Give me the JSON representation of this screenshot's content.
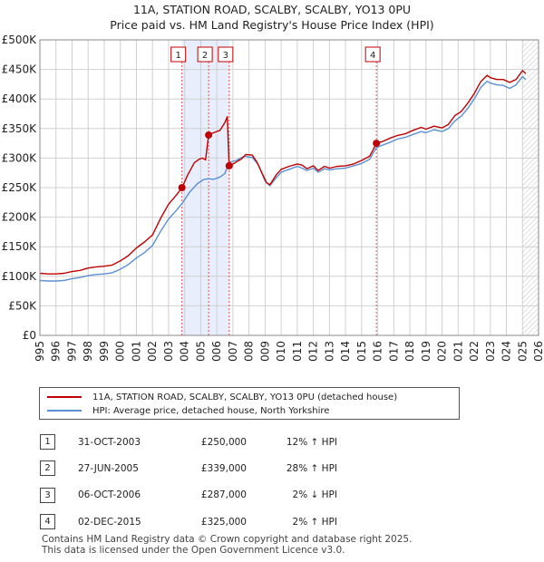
{
  "title_line1": "11A, STATION ROAD, SCALBY, SCALBY, YO13 0PU",
  "title_line2": "Price paid vs. HM Land Registry's House Price Index (HPI)",
  "colors": {
    "property": "#c00000",
    "hpi": "#5b8fd4",
    "shade": "#e8eefb",
    "grid": "#d0d0d0",
    "marker_line": "#e05050"
  },
  "chart_data": {
    "type": "line",
    "title": "11A, STATION ROAD, SCALBY, SCALBY, YO13 0PU",
    "subtitle": "Price paid vs. HM Land Registry's House Price Index (HPI)",
    "xlabel": "",
    "ylabel": "",
    "xlim": [
      1995,
      2026
    ],
    "ylim": [
      0,
      500000
    ],
    "y_ticks": [
      0,
      50000,
      100000,
      150000,
      200000,
      250000,
      300000,
      350000,
      400000,
      450000,
      500000
    ],
    "y_tick_labels": [
      "£0",
      "£50K",
      "£100K",
      "£150K",
      "£200K",
      "£250K",
      "£300K",
      "£350K",
      "£400K",
      "£450K",
      "£500K"
    ],
    "x_ticks": [
      1995,
      1996,
      1997,
      1998,
      1999,
      2000,
      2001,
      2002,
      2003,
      2004,
      2005,
      2006,
      2007,
      2008,
      2009,
      2010,
      2011,
      2012,
      2013,
      2014,
      2015,
      2016,
      2017,
      2018,
      2019,
      2020,
      2021,
      2022,
      2023,
      2024,
      2025,
      2026
    ],
    "grid": true,
    "shaded_ranges": [
      [
        2003.83,
        2006.77
      ]
    ],
    "hatched_from": 2025.0,
    "series": [
      {
        "name": "11A, STATION ROAD, SCALBY, SCALBY, YO13 0PU (detached house)",
        "color": "#c00000",
        "points": [
          [
            1995.0,
            105000
          ],
          [
            1995.5,
            104000
          ],
          [
            1996.0,
            104000
          ],
          [
            1996.5,
            105000
          ],
          [
            1997.0,
            108000
          ],
          [
            1997.5,
            110000
          ],
          [
            1998.0,
            114000
          ],
          [
            1998.5,
            116000
          ],
          [
            1999.0,
            117000
          ],
          [
            1999.5,
            119000
          ],
          [
            2000.0,
            126000
          ],
          [
            2000.5,
            135000
          ],
          [
            2001.0,
            148000
          ],
          [
            2001.5,
            158000
          ],
          [
            2002.0,
            170000
          ],
          [
            2002.5,
            198000
          ],
          [
            2003.0,
            222000
          ],
          [
            2003.5,
            238000
          ],
          [
            2003.83,
            250000
          ],
          [
            2004.2,
            272000
          ],
          [
            2004.6,
            292000
          ],
          [
            2004.9,
            298000
          ],
          [
            2005.1,
            300000
          ],
          [
            2005.3,
            297000
          ],
          [
            2005.49,
            339000
          ],
          [
            2005.8,
            343000
          ],
          [
            2006.2,
            347000
          ],
          [
            2006.5,
            360000
          ],
          [
            2006.65,
            370000
          ],
          [
            2006.74,
            303000
          ],
          [
            2006.77,
            287000
          ],
          [
            2007.0,
            290000
          ],
          [
            2007.5,
            298000
          ],
          [
            2007.8,
            306000
          ],
          [
            2008.2,
            305000
          ],
          [
            2008.5,
            293000
          ],
          [
            2008.8,
            275000
          ],
          [
            2009.1,
            258000
          ],
          [
            2009.3,
            255000
          ],
          [
            2009.7,
            272000
          ],
          [
            2010.0,
            281000
          ],
          [
            2010.5,
            286000
          ],
          [
            2011.0,
            290000
          ],
          [
            2011.3,
            288000
          ],
          [
            2011.6,
            282000
          ],
          [
            2012.0,
            287000
          ],
          [
            2012.3,
            279000
          ],
          [
            2012.7,
            286000
          ],
          [
            2013.0,
            283000
          ],
          [
            2013.5,
            286000
          ],
          [
            2014.0,
            287000
          ],
          [
            2014.5,
            290000
          ],
          [
            2015.0,
            296000
          ],
          [
            2015.5,
            303000
          ],
          [
            2015.92,
            325000
          ],
          [
            2016.3,
            328000
          ],
          [
            2016.8,
            334000
          ],
          [
            2017.2,
            338000
          ],
          [
            2017.7,
            341000
          ],
          [
            2018.2,
            347000
          ],
          [
            2018.7,
            352000
          ],
          [
            2019.0,
            349000
          ],
          [
            2019.5,
            354000
          ],
          [
            2020.0,
            351000
          ],
          [
            2020.4,
            357000
          ],
          [
            2020.8,
            372000
          ],
          [
            2021.2,
            379000
          ],
          [
            2021.6,
            393000
          ],
          [
            2022.0,
            409000
          ],
          [
            2022.4,
            429000
          ],
          [
            2022.8,
            440000
          ],
          [
            2023.0,
            436000
          ],
          [
            2023.4,
            433000
          ],
          [
            2023.8,
            433000
          ],
          [
            2024.2,
            428000
          ],
          [
            2024.6,
            433000
          ],
          [
            2025.0,
            448000
          ],
          [
            2025.2,
            443000
          ]
        ]
      },
      {
        "name": "HPI: Average price, detached house, North Yorkshire",
        "color": "#5b8fd4",
        "points": [
          [
            1995.0,
            93000
          ],
          [
            1995.5,
            92000
          ],
          [
            1996.0,
            92000
          ],
          [
            1996.5,
            93000
          ],
          [
            1997.0,
            96000
          ],
          [
            1997.5,
            98000
          ],
          [
            1998.0,
            101000
          ],
          [
            1998.5,
            103000
          ],
          [
            1999.0,
            104000
          ],
          [
            1999.5,
            106000
          ],
          [
            2000.0,
            112000
          ],
          [
            2000.5,
            120000
          ],
          [
            2001.0,
            131000
          ],
          [
            2001.5,
            140000
          ],
          [
            2002.0,
            152000
          ],
          [
            2002.5,
            176000
          ],
          [
            2003.0,
            197000
          ],
          [
            2003.5,
            212000
          ],
          [
            2003.83,
            223000
          ],
          [
            2004.3,
            242000
          ],
          [
            2004.8,
            257000
          ],
          [
            2005.2,
            264000
          ],
          [
            2005.49,
            265000
          ],
          [
            2005.8,
            264000
          ],
          [
            2006.2,
            268000
          ],
          [
            2006.5,
            274000
          ],
          [
            2006.77,
            293000
          ],
          [
            2007.2,
            296000
          ],
          [
            2007.7,
            303000
          ],
          [
            2008.2,
            301000
          ],
          [
            2008.6,
            288000
          ],
          [
            2009.0,
            261000
          ],
          [
            2009.3,
            253000
          ],
          [
            2009.7,
            267000
          ],
          [
            2010.0,
            276000
          ],
          [
            2010.5,
            281000
          ],
          [
            2011.0,
            286000
          ],
          [
            2011.3,
            283000
          ],
          [
            2011.6,
            279000
          ],
          [
            2012.0,
            283000
          ],
          [
            2012.3,
            276000
          ],
          [
            2012.7,
            282000
          ],
          [
            2013.0,
            280000
          ],
          [
            2013.5,
            282000
          ],
          [
            2014.0,
            283000
          ],
          [
            2014.5,
            287000
          ],
          [
            2015.0,
            291000
          ],
          [
            2015.5,
            298000
          ],
          [
            2015.92,
            318000
          ],
          [
            2016.3,
            322000
          ],
          [
            2016.8,
            327000
          ],
          [
            2017.2,
            332000
          ],
          [
            2017.7,
            335000
          ],
          [
            2018.2,
            340000
          ],
          [
            2018.7,
            345000
          ],
          [
            2019.0,
            343000
          ],
          [
            2019.5,
            348000
          ],
          [
            2020.0,
            345000
          ],
          [
            2020.4,
            350000
          ],
          [
            2020.8,
            363000
          ],
          [
            2021.2,
            371000
          ],
          [
            2021.6,
            384000
          ],
          [
            2022.0,
            400000
          ],
          [
            2022.4,
            419000
          ],
          [
            2022.8,
            430000
          ],
          [
            2023.0,
            427000
          ],
          [
            2023.4,
            424000
          ],
          [
            2023.8,
            423000
          ],
          [
            2024.2,
            418000
          ],
          [
            2024.6,
            424000
          ],
          [
            2025.0,
            438000
          ],
          [
            2025.2,
            433000
          ]
        ]
      }
    ],
    "sales": [
      {
        "id": "1",
        "x": 2003.83,
        "price": 250000
      },
      {
        "id": "2",
        "x": 2005.49,
        "price": 339000
      },
      {
        "id": "3",
        "x": 2006.77,
        "price": 287000
      },
      {
        "id": "4",
        "x": 2015.92,
        "price": 325000
      }
    ]
  },
  "legend": {
    "property_label": "11A, STATION ROAD, SCALBY, SCALBY, YO13 0PU (detached house)",
    "hpi_label": "HPI: Average price, detached house, North Yorkshire"
  },
  "table": [
    {
      "num": "1",
      "date": "31-OCT-2003",
      "price": "£250,000",
      "hpi": "12% ↑ HPI"
    },
    {
      "num": "2",
      "date": "27-JUN-2005",
      "price": "£339,000",
      "hpi": "28% ↑ HPI"
    },
    {
      "num": "3",
      "date": "06-OCT-2006",
      "price": "£287,000",
      "hpi": "2% ↓ HPI"
    },
    {
      "num": "4",
      "date": "02-DEC-2015",
      "price": "£325,000",
      "hpi": "2% ↑ HPI"
    }
  ],
  "footer_line1": "Contains HM Land Registry data © Crown copyright and database right 2025.",
  "footer_line2": "This data is licensed under the Open Government Licence v3.0."
}
